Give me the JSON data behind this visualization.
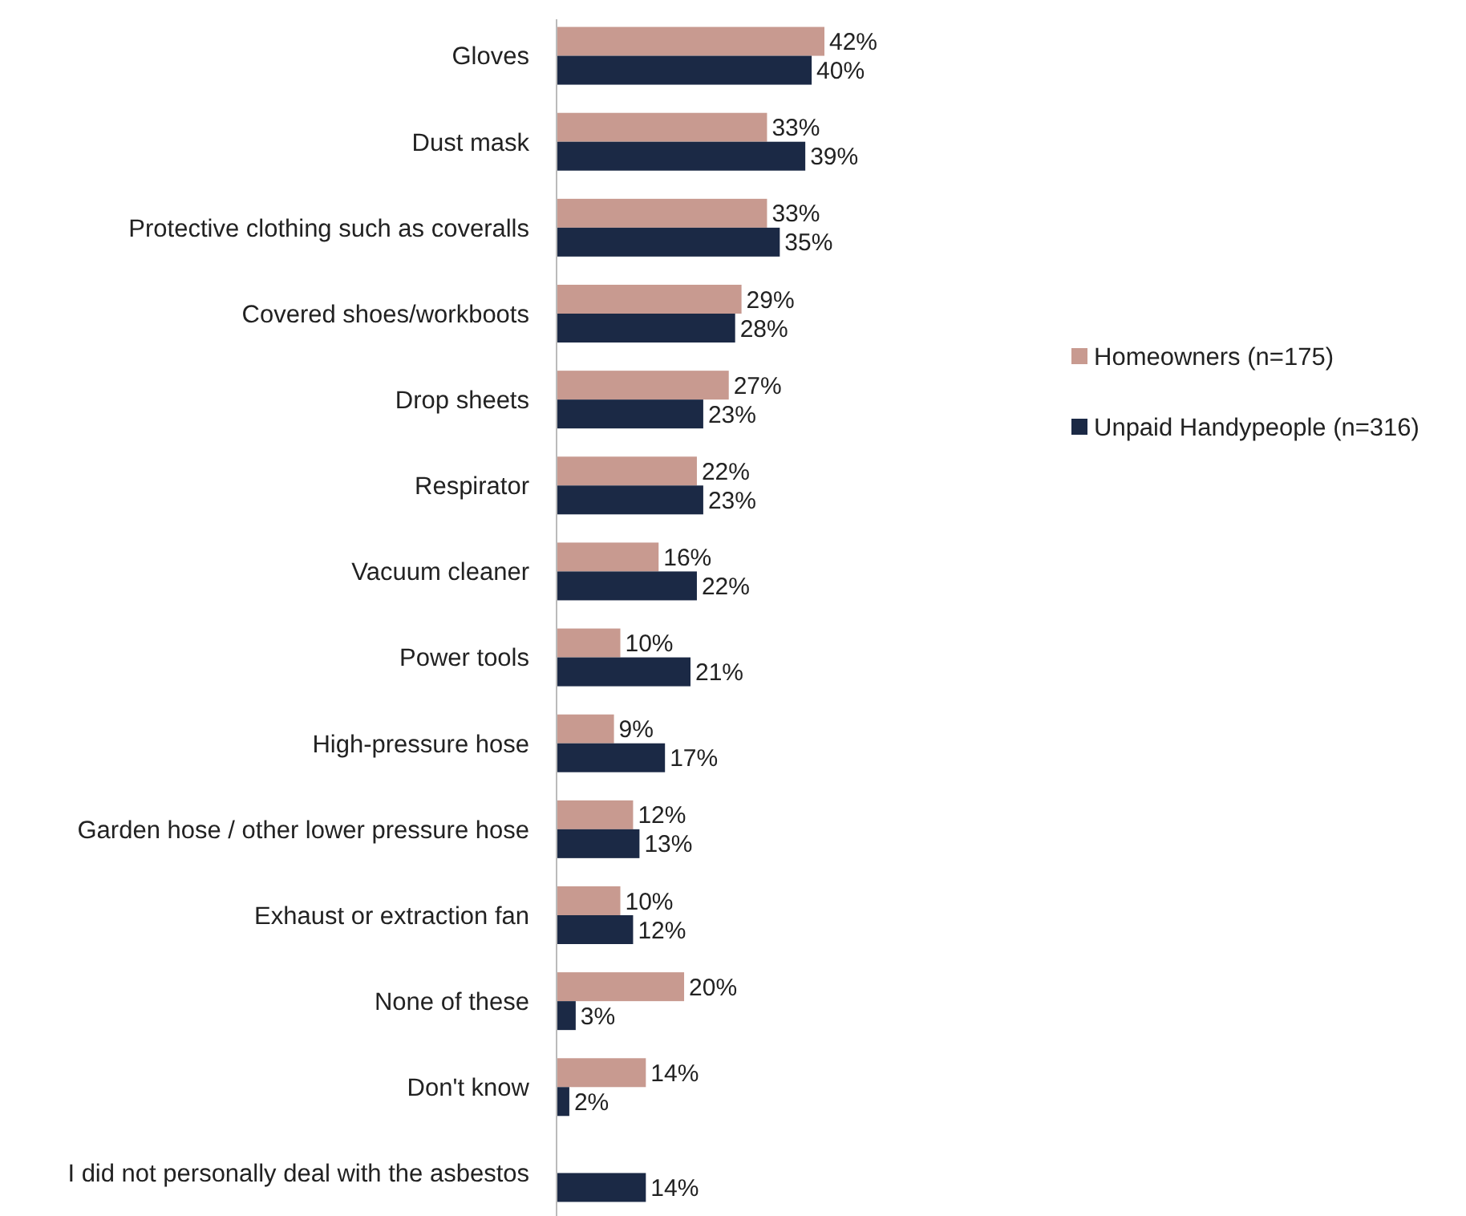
{
  "chart_data": {
    "type": "bar",
    "orientation": "horizontal",
    "categories": [
      "Gloves",
      "Dust mask",
      "Protective clothing such as coveralls",
      "Covered shoes/workboots",
      "Drop sheets",
      "Respirator",
      "Vacuum cleaner",
      "Power tools",
      "High-pressure hose",
      "Garden hose / other lower pressure hose",
      "Exhaust or extraction fan",
      "None of these",
      "Don't know",
      "I did not personally deal with the asbestos"
    ],
    "series": [
      {
        "name": "Homeowners (n=175)",
        "color": "#c89a90",
        "values": [
          42,
          33,
          33,
          29,
          27,
          22,
          16,
          10,
          9,
          12,
          10,
          20,
          14,
          null
        ],
        "value_labels": [
          "42%",
          "33%",
          "33%",
          "29%",
          "27%",
          "22%",
          "16%",
          "10%",
          "9%",
          "12%",
          "10%",
          "20%",
          "14%",
          null
        ]
      },
      {
        "name": "Unpaid Handypeople (n=316)",
        "color": "#1b2945",
        "values": [
          40,
          39,
          35,
          28,
          23,
          23,
          22,
          21,
          17,
          13,
          12,
          3,
          2,
          14
        ],
        "value_labels": [
          "40%",
          "39%",
          "35%",
          "28%",
          "23%",
          "23%",
          "22%",
          "21%",
          "17%",
          "13%",
          "12%",
          "3%",
          "2%",
          "14%"
        ]
      }
    ],
    "legend": "right"
  }
}
